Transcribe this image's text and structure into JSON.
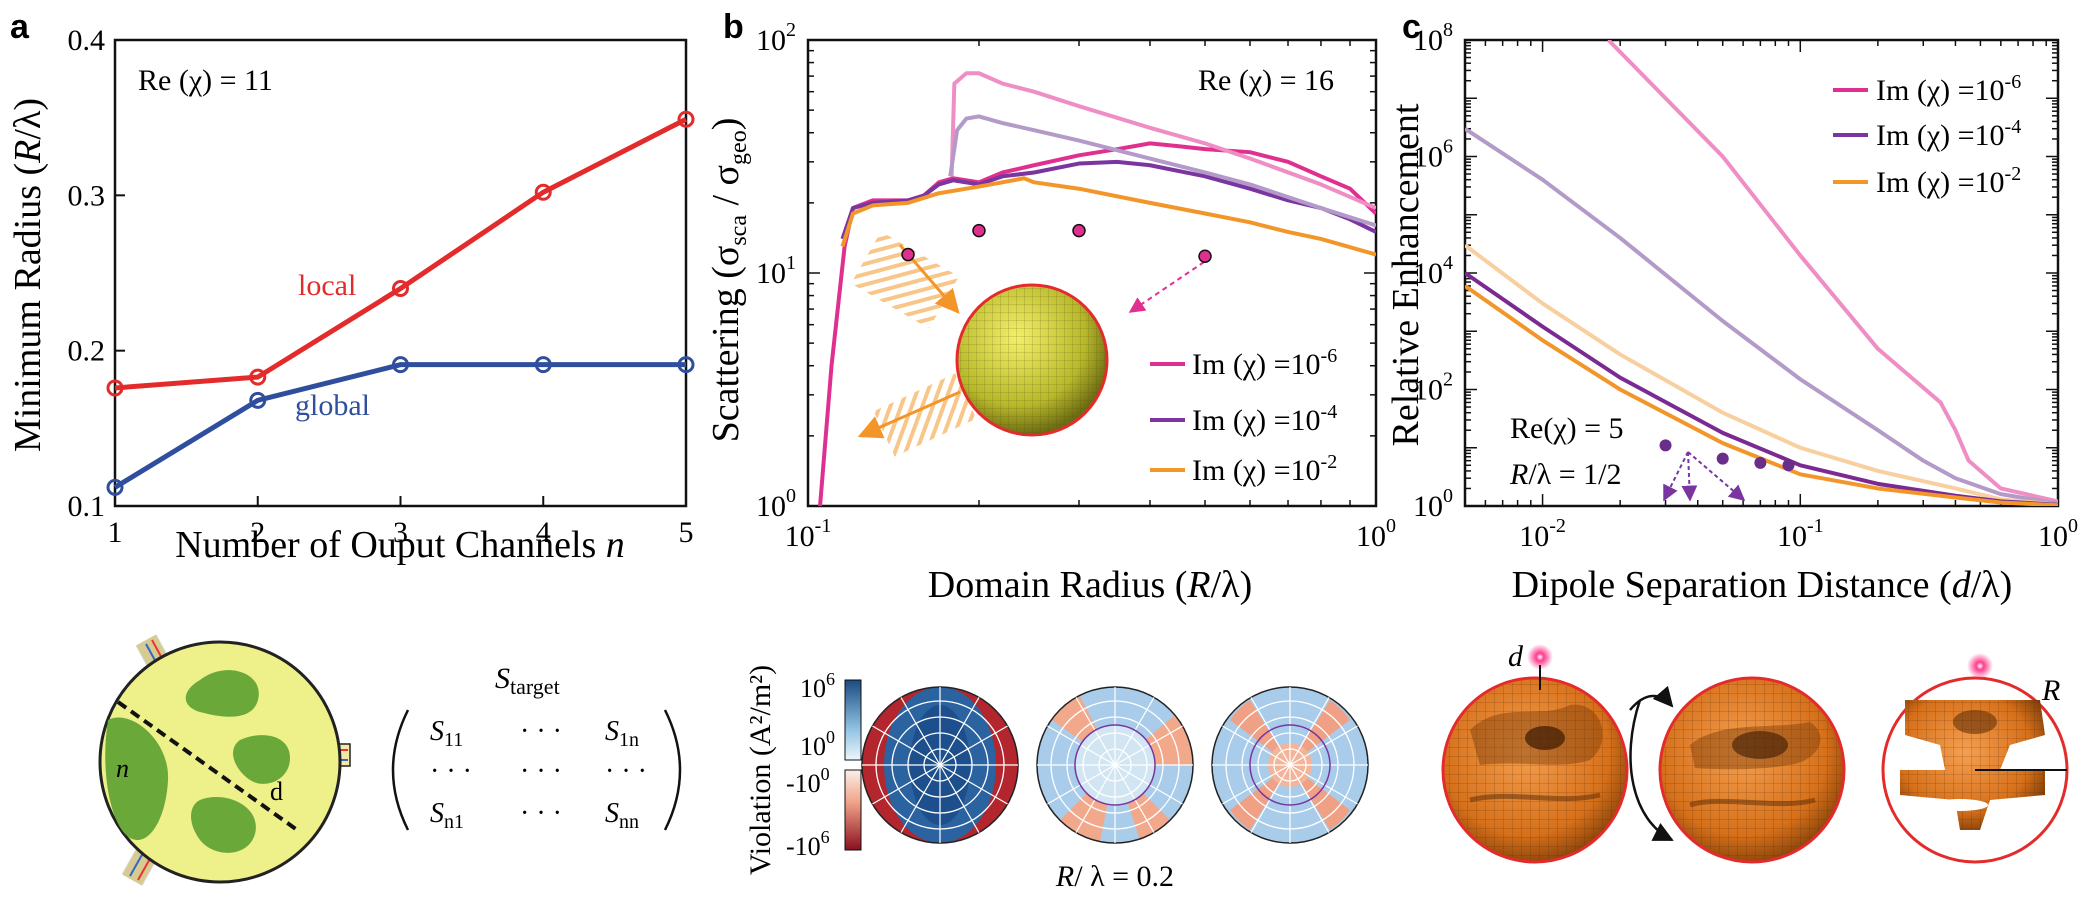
{
  "chart_data": [
    {
      "panel": "a",
      "type": "line",
      "xlabel_main": "Number of Ouput Channels ",
      "xlabel_var": "n",
      "ylabel_main": "Minimum Radius (",
      "ylabel_var": "R",
      "ylabel_end": "/λ)",
      "annotation": "Re (χ) = 11",
      "xlim": [
        1,
        5
      ],
      "ylim": [
        0.1,
        0.4
      ],
      "xticks": [
        "1",
        "2",
        "3",
        "4",
        "5"
      ],
      "yticks": [
        "0.1",
        "0.2",
        "0.3",
        "0.4"
      ],
      "categories": [
        1,
        2,
        3,
        4,
        5
      ],
      "series": [
        {
          "name": "local",
          "color": "#e32b2b",
          "values": [
            0.176,
            0.183,
            0.24,
            0.302,
            0.349
          ]
        },
        {
          "name": "global",
          "color": "#2f4f9e",
          "values": [
            0.112,
            0.168,
            0.191,
            0.191,
            0.191
          ]
        }
      ]
    },
    {
      "panel": "b",
      "type": "line",
      "xscale": "log",
      "yscale": "log",
      "xlabel": "Domain Radius (R/λ)",
      "ylabel": "Scattering (σsca / σgeo)",
      "annotation": "Re (χ) = 16",
      "xlim": [
        0.1,
        1
      ],
      "ylim": [
        1,
        100
      ],
      "series": [
        {
          "name": "Im (χ) =10^-6",
          "color": "#e0308f",
          "x": [
            0.105,
            0.11,
            0.116,
            0.12,
            0.13,
            0.15,
            0.16,
            0.17,
            0.18,
            0.2,
            0.22,
            0.25,
            0.3,
            0.35,
            0.4,
            0.45,
            0.5,
            0.6,
            0.7,
            0.8,
            0.9,
            1.0
          ],
          "values": [
            1.0,
            4.0,
            13,
            19,
            20.5,
            20.5,
            21.5,
            24.5,
            25.5,
            24.5,
            27,
            29,
            32,
            34,
            36,
            35,
            34,
            33,
            30,
            26,
            23,
            18
          ]
        },
        {
          "name": "Im (χ) =10^-4",
          "color": "#7a35a0",
          "x": [
            0.115,
            0.12,
            0.13,
            0.15,
            0.16,
            0.17,
            0.18,
            0.2,
            0.22,
            0.25,
            0.3,
            0.35,
            0.4,
            0.5,
            0.6,
            0.7,
            0.8,
            0.9,
            1.0
          ],
          "values": [
            14,
            19,
            20,
            20.5,
            21.5,
            24,
            25,
            24,
            26,
            27,
            29.5,
            30,
            29,
            26,
            23,
            20.5,
            19,
            17,
            15
          ]
        },
        {
          "name": "Im (χ) =10^-2",
          "color": "#f3962a",
          "x": [
            0.115,
            0.12,
            0.13,
            0.15,
            0.17,
            0.2,
            0.22,
            0.24,
            0.25,
            0.3,
            0.4,
            0.5,
            0.6,
            0.7,
            0.8,
            1.0
          ],
          "values": [
            13,
            18,
            19.5,
            20,
            22,
            23.5,
            24.5,
            25.5,
            24.5,
            23,
            20,
            18,
            16.5,
            15,
            14,
            12
          ]
        },
        {
          "name": "pink (faded)",
          "color": "#ee8ec5",
          "x": [
            0.179,
            0.181,
            0.19,
            0.2,
            0.22,
            0.25,
            0.3,
            0.4,
            0.5,
            0.6,
            0.8,
            1.0
          ],
          "values": [
            26,
            65,
            72,
            72,
            65,
            60,
            52,
            42,
            36,
            31,
            24,
            19
          ]
        },
        {
          "name": "purple (faded)",
          "color": "#b39ac8",
          "x": [
            0.178,
            0.183,
            0.19,
            0.2,
            0.22,
            0.25,
            0.3,
            0.4,
            0.5,
            0.6,
            0.8,
            1.0
          ],
          "values": [
            26,
            41,
            46,
            47,
            44,
            41,
            37,
            31,
            27,
            24,
            19,
            16
          ]
        }
      ],
      "legend": [
        "Im (χ) =10",
        "Im (χ) =10",
        "Im (χ) =10"
      ],
      "legend_exp": [
        "-6",
        "-4",
        "-2"
      ],
      "yticks": [
        "10",
        "10",
        "10"
      ],
      "ytick_exp": [
        "0",
        "1",
        "2"
      ],
      "xticks": [
        "10",
        "10"
      ],
      "xtick_exp": [
        "-1",
        "0"
      ],
      "inset_caption": "R/ λ = 0.2",
      "colorbar_label": "Violation (A²/m²)",
      "colorbar_ticks": [
        "10",
        "10",
        "-10",
        "-10"
      ],
      "colorbar_tick_exp": [
        "6",
        "0",
        "0",
        "6"
      ]
    },
    {
      "panel": "c",
      "type": "line",
      "xscale": "log",
      "yscale": "log",
      "xlabel": "Dipole Separation Distance (d/λ)",
      "ylabel": "Relative Enhancement",
      "annotation_1": "Re(χ) = 5",
      "annotation_2": "R/λ = 1/2",
      "xlim": [
        0.005,
        1
      ],
      "ylim": [
        1,
        100000000
      ],
      "series": [
        {
          "name": "Im (χ) =10^-6",
          "color": "#ee8ec5",
          "x": [
            0.018,
            0.03,
            0.05,
            0.1,
            0.2,
            0.35,
            0.4,
            0.45,
            0.6,
            1.0
          ],
          "values": [
            100000000,
            10000000,
            1000000,
            20000,
            500,
            60,
            20,
            6,
            2,
            1.2
          ]
        },
        {
          "name": "Im (χ) =10^-4",
          "color": "#b39ac8",
          "x": [
            0.005,
            0.01,
            0.02,
            0.05,
            0.1,
            0.2,
            0.3,
            0.4,
            0.6,
            1.0
          ],
          "values": [
            3000000,
            400000,
            40000,
            1500,
            150,
            20,
            6,
            3,
            1.6,
            1.1
          ]
        },
        {
          "name": "Im (χ) =10^-2",
          "color": "#f8cf9f",
          "x": [
            0.005,
            0.01,
            0.02,
            0.05,
            0.1,
            0.2,
            0.4,
            0.6,
            1.0
          ],
          "values": [
            30000,
            3000,
            400,
            40,
            10,
            4,
            2,
            1.3,
            1.05
          ]
        },
        {
          "name": "purple",
          "color": "#7a2a90",
          "x": [
            0.005,
            0.01,
            0.02,
            0.05,
            0.1,
            0.2,
            0.4,
            0.6,
            1.0
          ],
          "values": [
            10000,
            1200,
            160,
            18,
            5,
            2.4,
            1.5,
            1.2,
            1.05
          ]
        },
        {
          "name": "orange",
          "color": "#f3962a",
          "x": [
            0.005,
            0.01,
            0.02,
            0.05,
            0.1,
            0.2,
            0.4,
            0.6,
            1.0
          ],
          "values": [
            6000,
            700,
            100,
            12,
            3.5,
            2.0,
            1.4,
            1.15,
            1.03
          ]
        }
      ],
      "legend": [
        "Im (χ) =10",
        "Im (χ) =10",
        "Im (χ) =10"
      ],
      "legend_exp": [
        "-6",
        "-4",
        "-2"
      ],
      "legend_colors": [
        "#e0308f",
        "#7a35a0",
        "#f3962a"
      ],
      "yticks": [
        "10",
        "10",
        "10",
        "10",
        "10"
      ],
      "ytick_exp": [
        "0",
        "2",
        "4",
        "6",
        "8"
      ],
      "xticks": [
        "10",
        "10",
        "10"
      ],
      "xtick_exp": [
        "-2",
        "-1",
        "0"
      ],
      "inset_labels": [
        "d",
        "R"
      ]
    }
  ],
  "panel_letters": [
    "a",
    "b",
    "c"
  ],
  "diagram": {
    "region_label": "n",
    "dash_label": "d",
    "matrix_title": "S",
    "matrix_title_sub": "target",
    "matrix": [
      [
        "S11",
        "· · ·",
        "S1n"
      ],
      [
        "· · ·",
        "· · ·",
        "· · ·"
      ],
      [
        "Sn1",
        "· · ·",
        "Snn"
      ]
    ]
  },
  "colors": {
    "local": "#e32b2b",
    "global": "#2f4f9e",
    "pink": "#e0308f",
    "purple": "#7a35a0",
    "orange": "#f3962a",
    "structure": "#e6821e"
  }
}
